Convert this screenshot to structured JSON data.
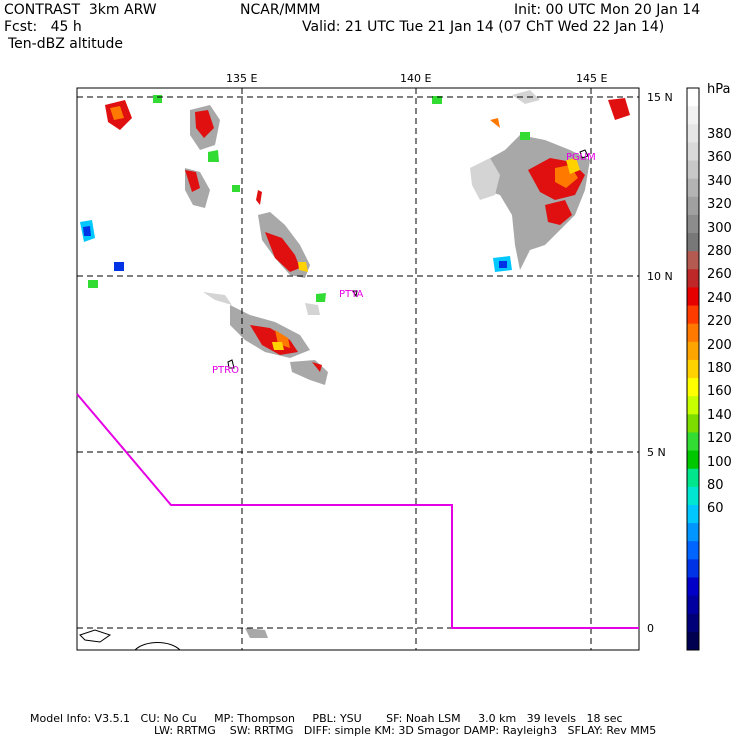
{
  "header": {
    "model_line": "CONTRAST  3km ARW",
    "org": "NCAR/MMM",
    "init": "Init: 00 UTC Mon 20 Jan 14",
    "fcst": "Fcst:   45 h",
    "valid": "Valid: 21 UTC Tue 21 Jan 14 (07 ChT Wed 22 Jan 14)",
    "field": "Ten-dBZ altitude"
  },
  "map": {
    "lon_labels": [
      "135 E",
      "140 E",
      "145 E"
    ],
    "lat_labels": [
      "15 N",
      "10 N",
      "5 N",
      "0"
    ],
    "stations": [
      "PTYA",
      "PTRO",
      "PGUM"
    ],
    "boundary_color": "#e600e6"
  },
  "colorbar": {
    "unit": "hPa",
    "labels": [
      "380",
      "360",
      "340",
      "320",
      "300",
      "280",
      "260",
      "240",
      "220",
      "200",
      "180",
      "160",
      "140",
      "120",
      "100",
      "80",
      "60"
    ],
    "colors": [
      "#ffffff",
      "#f2f2f2",
      "#e6e6e6",
      "#d9d9d9",
      "#c8c8c8",
      "#b4b4b4",
      "#a0a0a0",
      "#8c8c8c",
      "#787878",
      "#b45a50",
      "#be2828",
      "#e60000",
      "#ff3c00",
      "#ff7800",
      "#ffa500",
      "#ffd200",
      "#ffff00",
      "#c8ff00",
      "#7ddc00",
      "#32dc32",
      "#00c800",
      "#00e68c",
      "#00e6d2",
      "#00c8ff",
      "#0096ff",
      "#0064ff",
      "#0032e6",
      "#0000c8",
      "#0000a0",
      "#000078",
      "#000050"
    ]
  },
  "footer": {
    "line1": "Model Info: V3.5.1   CU: No Cu     MP: Thompson     PBL: YSU       SF: Noah LSM     3.0 km   39 levels   18 sec",
    "line2": "LW: RRTMG    SW: RRTMG   DIFF: simple KM: 3D Smagor DAMP: Rayleigh3   SFLAY: Rev MM5"
  }
}
